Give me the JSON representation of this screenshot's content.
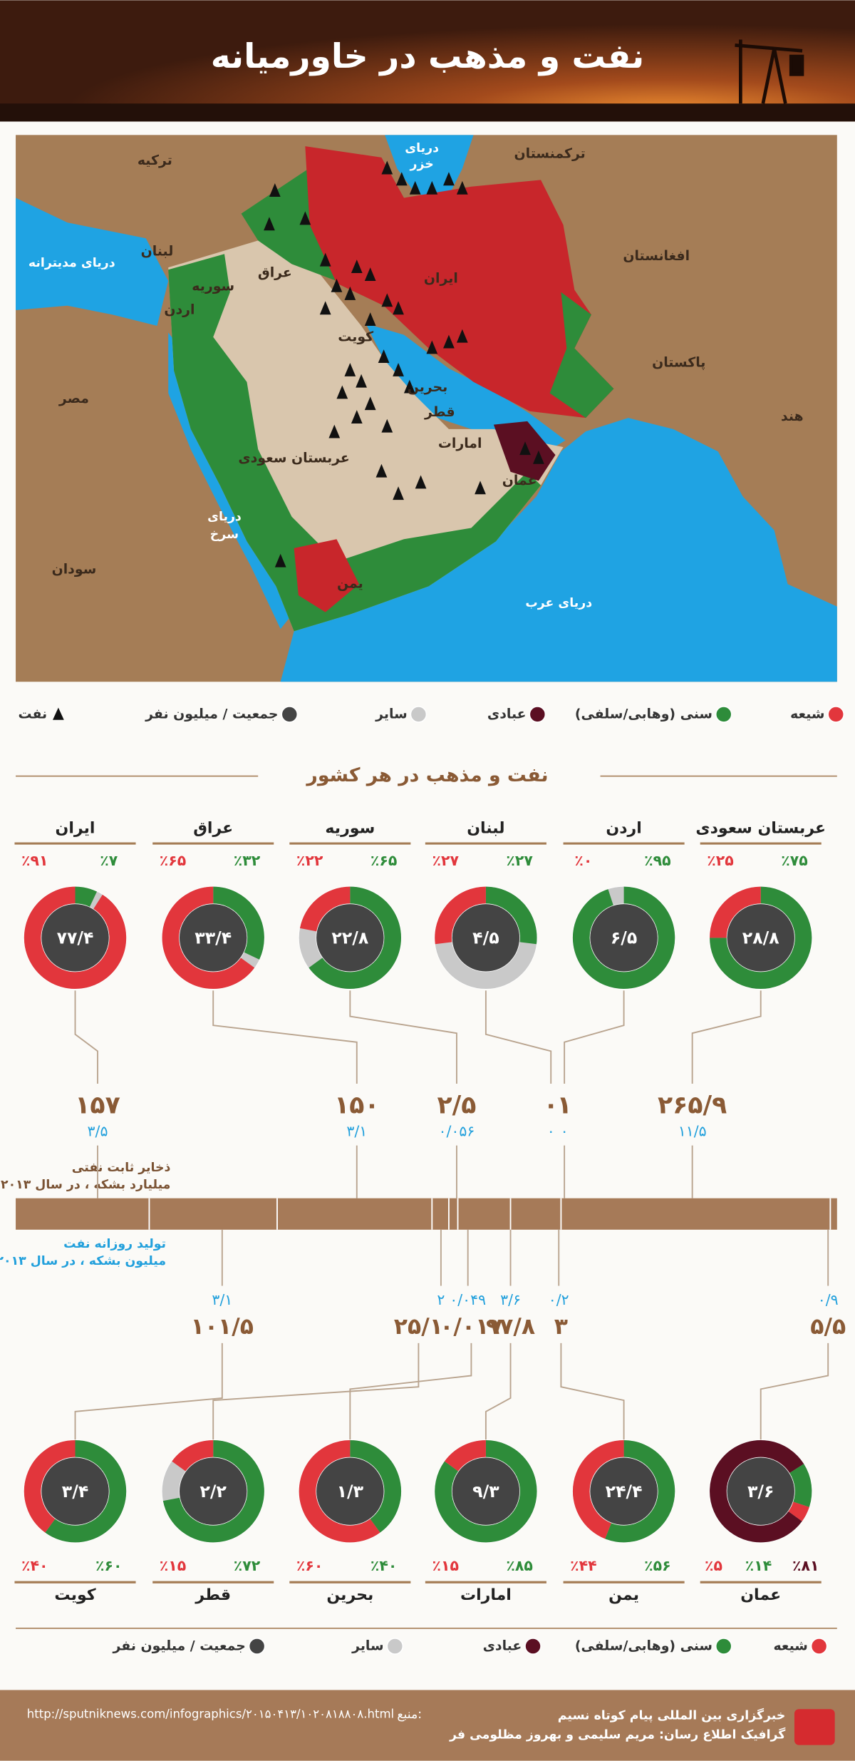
{
  "header": {
    "title": "نفت و مذهب در خاورمیانه"
  },
  "map": {
    "labels": [
      "ترکیه",
      "ترکمنستان",
      "دریای",
      "خزر",
      "دریای مدیترانه",
      "لبنان",
      "سوریه",
      "عراق",
      "ایران",
      "افغانستان",
      "اردن",
      "کویت",
      "پاکستان",
      "مصر",
      "بحرین",
      "قطر",
      "امارات",
      "هند",
      "عربستان سعودی",
      "عمان",
      "دریای",
      "سرخ",
      "سودان",
      "یمن",
      "دریای عرب"
    ]
  },
  "legend": {
    "items": [
      {
        "label": "شیعه",
        "color": "#e2363c"
      },
      {
        "label": "سنی (وهابی/سلفی)",
        "color": "#2e8c3a"
      },
      {
        "label": "عبادی",
        "color": "#5b0f22"
      },
      {
        "label": "سایر",
        "color": "#c9c9c9"
      },
      {
        "label": "جمعیت / میلیون نفر",
        "color": "#444444"
      },
      {
        "label": "نفت",
        "color": "#111111"
      }
    ]
  },
  "section_title": "نفت و مذهب در هر کشور",
  "reserves_label": [
    "ذخایر ثابت نفتی",
    "میلیارد بشکه ، در سال ۲۰۱۳"
  ],
  "production_label": [
    "تولید روزانه نفت",
    "میلیون بشکه ، در سال ۲۰۱۳"
  ],
  "top_countries": [
    {
      "name": "عربستان سعودی",
      "population": "۲۸/۸",
      "sunni": {
        "value": 75,
        "label": "٪۷۵"
      },
      "shia": {
        "value": 25,
        "label": "٪۲۵"
      },
      "reserves": "۲۶۵/۹",
      "production": "۱۱/۵"
    },
    {
      "name": "اردن",
      "population": "۶/۵",
      "sunni": {
        "value": 95,
        "label": "٪۹۵"
      },
      "shia": {
        "value": 0,
        "label": "٪۰"
      },
      "reserves": "۱",
      "production": "۰"
    },
    {
      "name": "لبنان",
      "population": "۴/۵",
      "sunni": {
        "value": 27,
        "label": "٪۲۷"
      },
      "shia": {
        "value": 27,
        "label": "٪۲۷"
      },
      "reserves": "۰",
      "production": "۰"
    },
    {
      "name": "سوریه",
      "population": "۲۲/۸",
      "sunni": {
        "value": 65,
        "label": "٪۶۵"
      },
      "shia": {
        "value": 22,
        "label": "٪۲۲"
      },
      "reserves": "۲/۵",
      "production": "۰/۰۵۶"
    },
    {
      "name": "عراق",
      "population": "۳۳/۴",
      "sunni": {
        "value": 32,
        "label": "٪۳۲"
      },
      "shia": {
        "value": 65,
        "label": "٪۶۵"
      },
      "reserves": "۱۵۰",
      "production": "۳/۱"
    },
    {
      "name": "ایران",
      "population": "۷۷/۴",
      "sunni": {
        "value": 7,
        "label": "٪۷"
      },
      "shia": {
        "value": 91,
        "label": "٪۹۱"
      },
      "reserves": "۱۵۷",
      "production": "۳/۵"
    }
  ],
  "bottom_countries": [
    {
      "name": "عمان",
      "population": "۳/۶",
      "ibadi": {
        "value": 81,
        "label": "٪۸۱"
      },
      "sunni": {
        "value": 14,
        "label": "٪۱۴"
      },
      "shia": {
        "value": 5,
        "label": "٪۵"
      },
      "reserves": "۵/۵",
      "production": "۰/۹"
    },
    {
      "name": "یمن",
      "population": "۲۴/۴",
      "sunni": {
        "value": 56,
        "label": "٪۵۶"
      },
      "shia": {
        "value": 44,
        "label": "٪۴۴"
      },
      "reserves": "۳",
      "production": "۰/۲"
    },
    {
      "name": "امارات",
      "population": "۹/۳",
      "sunni": {
        "value": 85,
        "label": "٪۸۵"
      },
      "shia": {
        "value": 15,
        "label": "٪۱۵"
      },
      "reserves": "۹۷/۸",
      "production": "۳/۶"
    },
    {
      "name": "بحرین",
      "population": "۱/۳",
      "sunni": {
        "value": 40,
        "label": "٪۴۰"
      },
      "shia": {
        "value": 60,
        "label": "٪۶۰"
      },
      "reserves": "۰/۰۱۷",
      "production": "۰/۰۴۹"
    },
    {
      "name": "قطر",
      "population": "۲/۲",
      "sunni": {
        "value": 72,
        "label": "٪۷۲"
      },
      "shia": {
        "value": 15,
        "label": "٪۱۵"
      },
      "reserves": "۲۵/۱",
      "production": "۲"
    },
    {
      "name": "کویت",
      "population": "۳/۴",
      "sunni": {
        "value": 60,
        "label": "٪۶۰"
      },
      "shia": {
        "value": 40,
        "label": "٪۴۰"
      },
      "reserves": "۱۰۱/۵",
      "production": "۳/۱"
    }
  ],
  "footer": {
    "agency": "خبرگزاری بین المللی پیام کوتاه نسیم",
    "credits": "گرافیک اطلاع رسان: مریم سلیمی و بهروز مظلومی فر",
    "source_label": "منبع:",
    "source_url": "http://sputniknews.com/infographics/۲۰۱۵۰۴۱۳/۱۰۲۰۸۱۸۸۰۸.html"
  }
}
